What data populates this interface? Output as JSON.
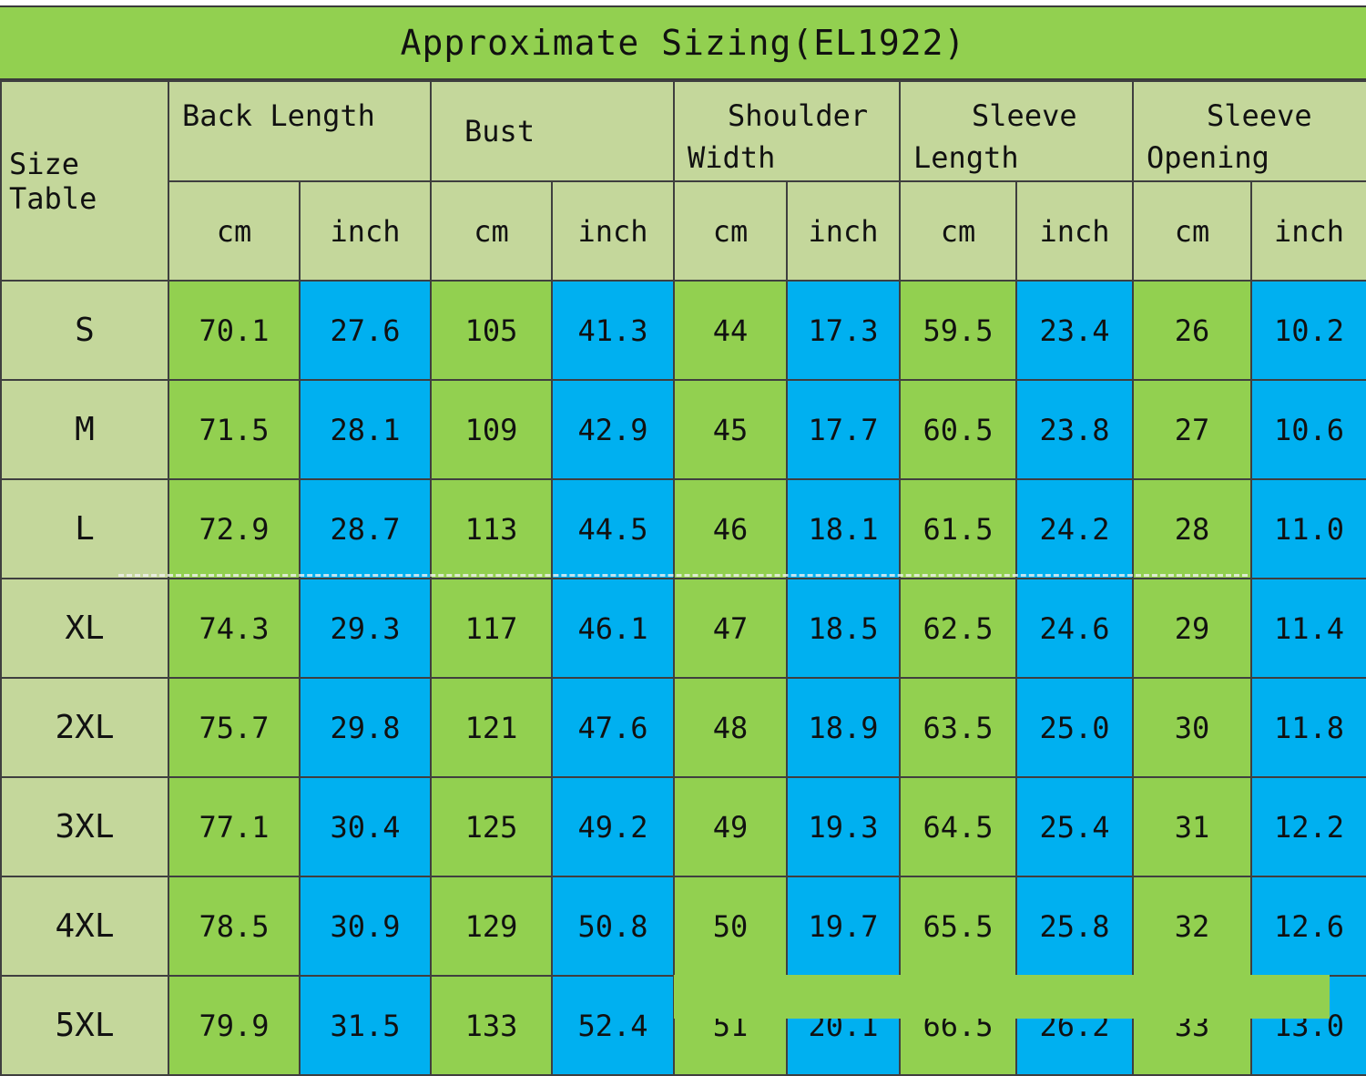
{
  "title": "Approximate Sizing(EL1922)",
  "header": {
    "size_table_label": "Size Table",
    "groups": [
      "Back Length",
      "Bust",
      "Shoulder Width",
      "Sleeve Length",
      "Sleeve Opening"
    ],
    "group_lines": [
      [
        "Back Length",
        ""
      ],
      [
        "Bust",
        ""
      ],
      [
        "Shoulder",
        "Width"
      ],
      [
        "Sleeve",
        "Length"
      ],
      [
        "Sleeve",
        "Opening"
      ]
    ],
    "units": [
      "cm",
      "inch",
      "cm",
      "inch",
      "cm",
      "inch",
      "cm",
      "inch",
      "cm",
      "inch"
    ]
  },
  "rows": [
    {
      "size": "S",
      "values": [
        "70.1",
        "27.6",
        "105",
        "41.3",
        "44",
        "17.3",
        "59.5",
        "23.4",
        "26",
        "10.2"
      ]
    },
    {
      "size": "M",
      "values": [
        "71.5",
        "28.1",
        "109",
        "42.9",
        "45",
        "17.7",
        "60.5",
        "23.8",
        "27",
        "10.6"
      ]
    },
    {
      "size": "L",
      "values": [
        "72.9",
        "28.7",
        "113",
        "44.5",
        "46",
        "18.1",
        "61.5",
        "24.2",
        "28",
        "11.0"
      ]
    },
    {
      "size": "XL",
      "values": [
        "74.3",
        "29.3",
        "117",
        "46.1",
        "47",
        "18.5",
        "62.5",
        "24.6",
        "29",
        "11.4"
      ]
    },
    {
      "size": "2XL",
      "values": [
        "75.7",
        "29.8",
        "121",
        "47.6",
        "48",
        "18.9",
        "63.5",
        "25.0",
        "30",
        "11.8"
      ]
    },
    {
      "size": "3XL",
      "values": [
        "77.1",
        "30.4",
        "125",
        "49.2",
        "49",
        "19.3",
        "64.5",
        "25.4",
        "31",
        "12.2"
      ]
    },
    {
      "size": "4XL",
      "values": [
        "78.5",
        "30.9",
        "129",
        "50.8",
        "50",
        "19.7",
        "65.5",
        "25.8",
        "32",
        "12.6"
      ]
    },
    {
      "size": "5XL",
      "values": [
        "79.9",
        "31.5",
        "133",
        "52.4",
        "51",
        "20.1",
        "66.5",
        "26.2",
        "33",
        "13.0"
      ]
    }
  ],
  "colors": {
    "title_bg": "#92d050",
    "header_bg": "#c4d79b",
    "cm_bg": "#92d050",
    "inch_bg": "#00b0f0",
    "border": "#3f3f3f"
  }
}
